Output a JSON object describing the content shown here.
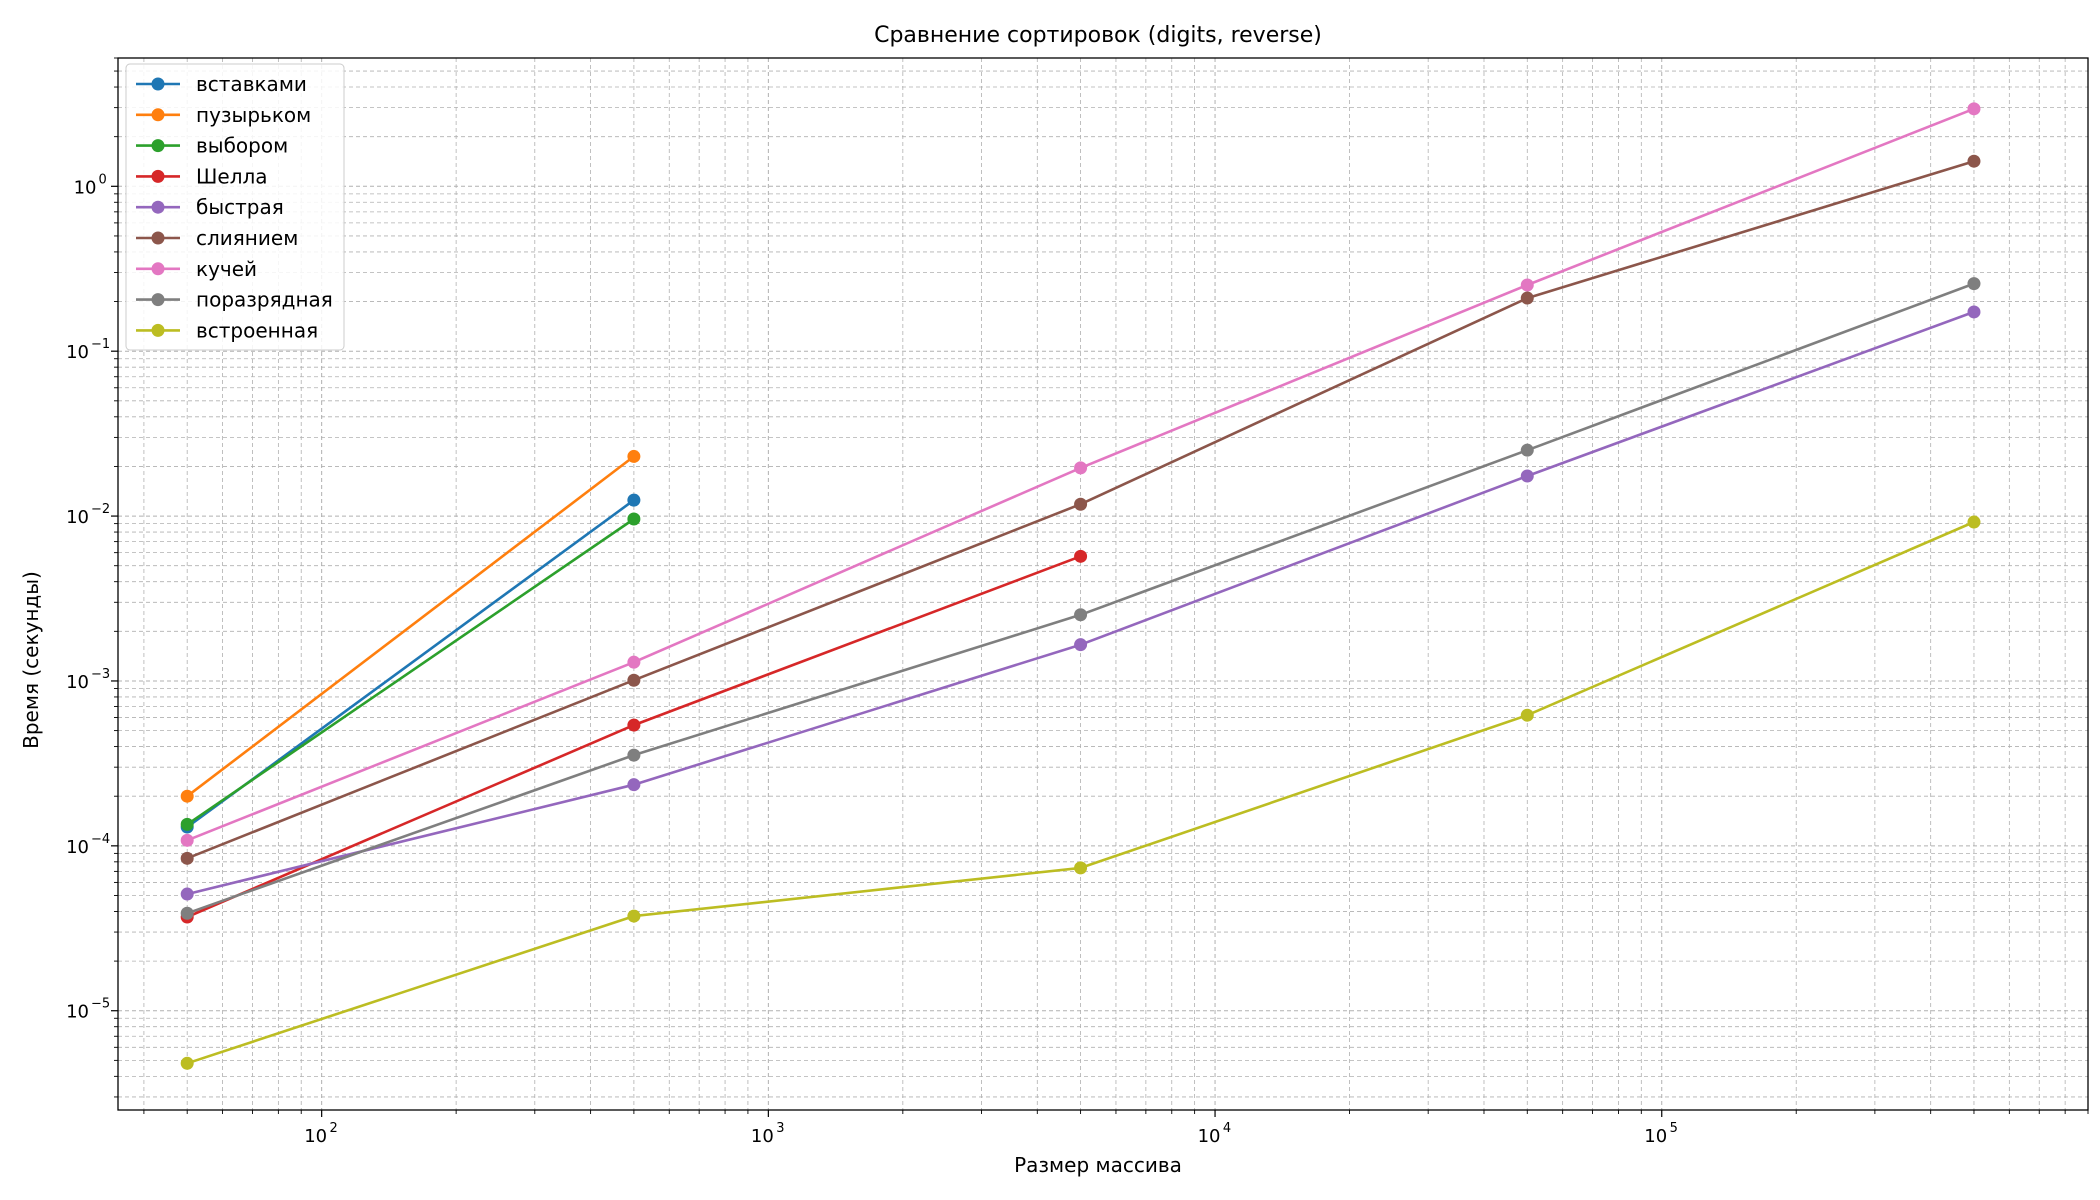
{
  "chart_data": {
    "type": "line",
    "title": "Сравнение сортировок (digits, reverse)",
    "xlabel": "Размер массива",
    "ylabel": "Время (секунды)",
    "x_scale": "log",
    "y_scale": "log",
    "xlim": [
      35,
      900000
    ],
    "ylim": [
      2.5e-06,
      6
    ],
    "grid": true,
    "grid_minor": true,
    "legend_position": "upper-left",
    "x_ticks": [
      {
        "value": 100,
        "base": "10",
        "exp": "2"
      },
      {
        "value": 1000,
        "base": "10",
        "exp": "3"
      },
      {
        "value": 10000,
        "base": "10",
        "exp": "4"
      },
      {
        "value": 100000,
        "base": "10",
        "exp": "5"
      }
    ],
    "y_ticks": [
      {
        "value": 1e-05,
        "base": "10",
        "exp": "−5"
      },
      {
        "value": 0.0001,
        "base": "10",
        "exp": "−4"
      },
      {
        "value": 0.001,
        "base": "10",
        "exp": "−3"
      },
      {
        "value": 0.01,
        "base": "10",
        "exp": "−2"
      },
      {
        "value": 0.1,
        "base": "10",
        "exp": "−1"
      },
      {
        "value": 1,
        "base": "10",
        "exp": "0"
      }
    ],
    "series": [
      {
        "name": "вставками",
        "color": "#1f77b4",
        "x": [
          50,
          500
        ],
        "y": [
          0.00013,
          0.0125
        ]
      },
      {
        "name": "пузырьком",
        "color": "#ff7f0e",
        "x": [
          50,
          500
        ],
        "y": [
          0.0002,
          0.023
        ]
      },
      {
        "name": "выбором",
        "color": "#2ca02c",
        "x": [
          50,
          500
        ],
        "y": [
          0.000135,
          0.0096
        ]
      },
      {
        "name": "Шелла",
        "color": "#d62728",
        "x": [
          50,
          500,
          5000
        ],
        "y": [
          3.7e-05,
          0.00054,
          0.0057
        ]
      },
      {
        "name": "быстрая",
        "color": "#9467bd",
        "x": [
          50,
          500,
          5000,
          50000,
          500000
        ],
        "y": [
          5.1e-05,
          0.000235,
          0.00166,
          0.0175,
          0.173
        ]
      },
      {
        "name": "слиянием",
        "color": "#8c564b",
        "x": [
          50,
          500,
          5000,
          50000,
          500000
        ],
        "y": [
          8.4e-05,
          0.00101,
          0.0118,
          0.21,
          1.42
        ]
      },
      {
        "name": "кучей",
        "color": "#e377c2",
        "x": [
          50,
          500,
          5000,
          50000,
          500000
        ],
        "y": [
          0.000108,
          0.0013,
          0.0196,
          0.252,
          2.95
        ]
      },
      {
        "name": "поразрядная",
        "color": "#7f7f7f",
        "x": [
          50,
          500,
          5000,
          50000,
          500000
        ],
        "y": [
          3.9e-05,
          0.000355,
          0.00252,
          0.0251,
          0.257
        ]
      },
      {
        "name": "встроенная",
        "color": "#bcbd22",
        "x": [
          50,
          500,
          5000,
          50000,
          500000
        ],
        "y": [
          4.8e-06,
          3.75e-05,
          7.35e-05,
          0.00062,
          0.0092
        ]
      }
    ]
  }
}
